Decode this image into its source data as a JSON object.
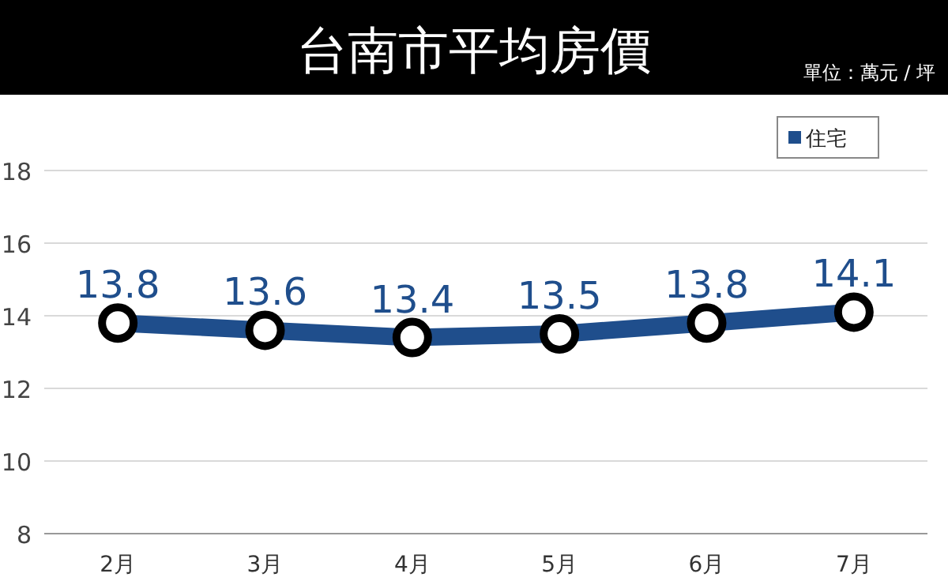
{
  "chart_data": {
    "type": "line",
    "title": "台南市平均房價",
    "annotations": [
      "單位：萬元 / 坪"
    ],
    "categories": [
      "2月",
      "3月",
      "4月",
      "5月",
      "6月",
      "7月"
    ],
    "series": [
      {
        "name": "住宅",
        "color": "#1f4e8c",
        "values": [
          13.8,
          13.6,
          13.4,
          13.5,
          13.8,
          14.1
        ]
      }
    ],
    "ylim": [
      8,
      18
    ],
    "yticks": [
      8,
      10,
      12,
      14,
      16,
      18
    ],
    "grid": "y",
    "legend": "top right",
    "marker": "circle",
    "line_style": "solid",
    "data_labels": true
  }
}
